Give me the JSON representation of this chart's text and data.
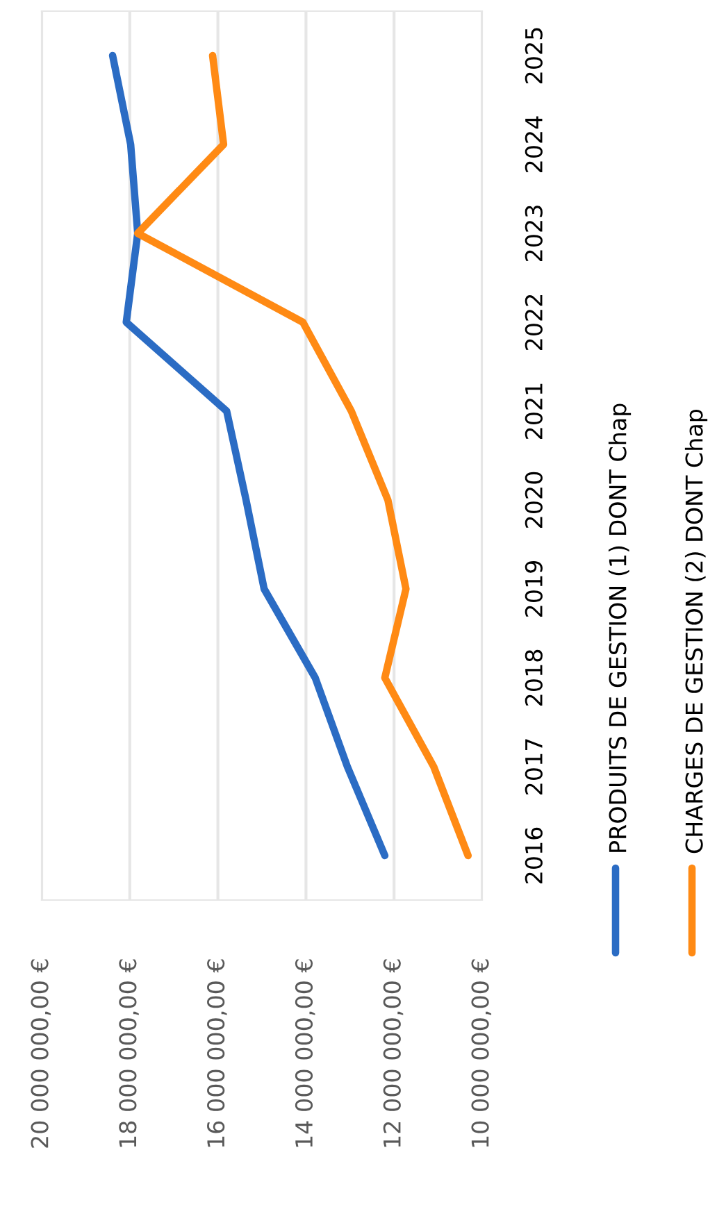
{
  "chart_data": {
    "type": "line",
    "orientation": "horizontal",
    "categories": [
      "2025",
      "2024",
      "2023",
      "2022",
      "2021",
      "2020",
      "2019",
      "2018",
      "2017",
      "2016"
    ],
    "series": [
      {
        "name": "PRODUITS DE GESTION (1) DONT Chap",
        "color": "#2b6cc4",
        "values": [
          18390000,
          17980000,
          17820000,
          18080000,
          15800000,
          15360000,
          14950000,
          13790000,
          13060000,
          12210000
        ]
      },
      {
        "name": "CHARGES DE GESTION (2) DONT Chap",
        "color": "#ff8a14",
        "values": [
          16120000,
          15870000,
          17820000,
          14070000,
          12970000,
          12140000,
          11730000,
          12210000,
          11100000,
          10320000
        ]
      }
    ],
    "xlim": [
      20000000,
      10000000
    ],
    "xticks": [
      {
        "value": 20000000,
        "label": "20 000 000,00 €"
      },
      {
        "value": 18000000,
        "label": "18 000 000,00 €"
      },
      {
        "value": 16000000,
        "label": "16 000 000,00 €"
      },
      {
        "value": 14000000,
        "label": "14 000 000,00 €"
      },
      {
        "value": 12000000,
        "label": "12 000 000,00 €"
      },
      {
        "value": 10000000,
        "label": "10 000 000,00 €"
      }
    ],
    "grid": "x",
    "legend": "right",
    "marker": "none",
    "line_style": "solid"
  }
}
